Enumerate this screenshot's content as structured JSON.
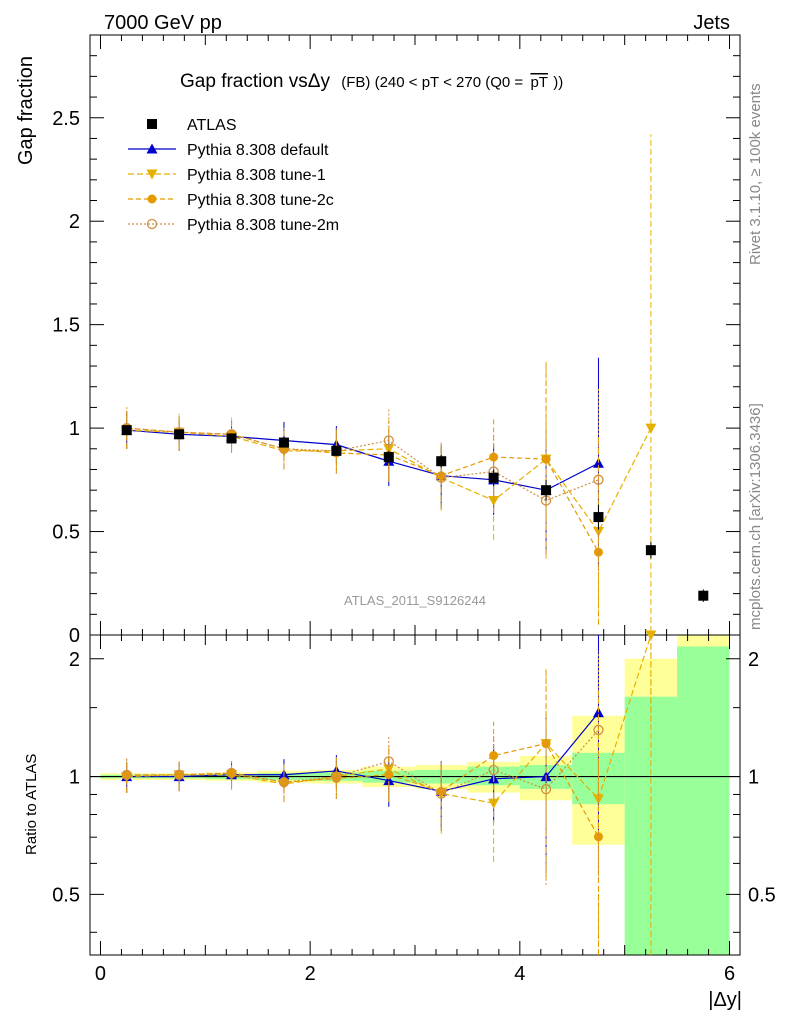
{
  "header": {
    "left": "7000 GeV pp",
    "right": "Jets"
  },
  "side_labels": {
    "rivet": "Rivet 3.1.10, ≥ 100k events",
    "mcplots": "mcplots.cern.ch [arXiv:1306.3436]"
  },
  "chart_data": {
    "type": "scatter",
    "title": "Gap fraction vsΔy (FB) (240 < pT < 270 (Q0 = pT))",
    "title_parts": {
      "main": "Gap fraction vsΔy",
      "sub": "(FB) (240 < pT < 270 (Q0 =",
      "bar": "pT",
      "close": "))"
    },
    "analysis": "ATLAS_2011_S9126244",
    "xlabel": "|Δy|",
    "ylabel": "Gap fraction",
    "ratio_ylabel": "Ratio to ATLAS",
    "xlim": [
      -0.1,
      6.1
    ],
    "ylim": [
      0,
      2.9
    ],
    "ratio_ylim": [
      0.35,
      2.3
    ],
    "x_ticks": [
      "0",
      "2",
      "4",
      "6"
    ],
    "y_ticks": [
      "0",
      "0.5",
      "1",
      "1.5",
      "2",
      "2.5"
    ],
    "ratio_ticks": [
      "0.5",
      "1",
      "2"
    ],
    "legend_position": "top-left",
    "x": [
      0.25,
      0.75,
      1.25,
      1.75,
      2.25,
      2.75,
      3.25,
      3.75,
      4.25,
      4.75,
      5.25,
      5.75
    ],
    "series": [
      {
        "name": "ATLAS",
        "color": "#000000",
        "marker": "square",
        "values": [
          0.99,
          0.97,
          0.95,
          0.93,
          0.89,
          0.86,
          0.84,
          0.76,
          0.7,
          0.57,
          0.41,
          0.19
        ],
        "errors": [
          0.01,
          0.01,
          0.01,
          0.02,
          0.02,
          0.03,
          0.03,
          0.04,
          0.05,
          0.06,
          0.04,
          0.03
        ]
      },
      {
        "name": "Pythia 8.308 default",
        "color": "#0000cc",
        "marker": "triangle-up",
        "dash": "",
        "values": [
          0.99,
          0.97,
          0.96,
          0.94,
          0.92,
          0.84,
          0.77,
          0.75,
          0.7,
          0.83,
          null,
          null
        ],
        "errors": [
          0.09,
          0.08,
          0.08,
          0.09,
          0.09,
          0.12,
          0.15,
          0.17,
          0.3,
          0.51,
          null,
          null
        ]
      },
      {
        "name": "Pythia 8.308 tune-1",
        "color": "#e5b000",
        "marker": "triangle-down",
        "dash": "6,3",
        "values": [
          0.99,
          0.98,
          0.96,
          0.89,
          0.89,
          0.9,
          0.76,
          0.65,
          0.85,
          0.5,
          1.0,
          null
        ],
        "errors": [
          0.09,
          0.08,
          0.08,
          0.09,
          0.1,
          0.14,
          0.16,
          0.19,
          0.47,
          0.45,
          1.42,
          null
        ]
      },
      {
        "name": "Pythia 8.308 tune-2c",
        "color": "#e59a00",
        "marker": "circle",
        "dash": "5,3",
        "values": [
          1.0,
          0.98,
          0.97,
          0.9,
          0.88,
          0.87,
          0.77,
          0.86,
          0.85,
          0.4,
          null,
          null
        ],
        "errors": [
          0.1,
          0.08,
          0.07,
          0.09,
          0.1,
          0.13,
          0.16,
          0.19,
          0.46,
          0.35,
          null,
          null
        ]
      },
      {
        "name": "Pythia 8.308 tune-2m",
        "color": "#d09040",
        "marker": "open-circle",
        "dash": "2,2",
        "values": [
          1.0,
          0.98,
          0.97,
          0.9,
          0.89,
          0.94,
          0.76,
          0.79,
          0.65,
          0.75,
          null,
          null
        ],
        "errors": [
          0.1,
          0.09,
          0.08,
          0.1,
          0.11,
          0.15,
          0.15,
          0.18,
          0.28,
          0.44,
          null,
          null
        ]
      }
    ],
    "ratio_bands": {
      "green": [
        [
          0.99,
          1.01
        ],
        [
          0.99,
          1.01
        ],
        [
          0.985,
          1.015
        ],
        [
          0.98,
          1.02
        ],
        [
          0.975,
          1.025
        ],
        [
          0.965,
          1.035
        ],
        [
          0.96,
          1.04
        ],
        [
          0.95,
          1.06
        ],
        [
          0.93,
          1.07
        ],
        [
          0.85,
          1.15
        ],
        [
          0.35,
          1.6
        ],
        [
          0.35,
          2.15
        ]
      ],
      "yellow": [
        [
          0.98,
          1.02
        ],
        [
          0.98,
          1.02
        ],
        [
          0.975,
          1.025
        ],
        [
          0.965,
          1.035
        ],
        [
          0.96,
          1.04
        ],
        [
          0.94,
          1.06
        ],
        [
          0.93,
          1.07
        ],
        [
          0.91,
          1.09
        ],
        [
          0.87,
          1.13
        ],
        [
          0.67,
          1.43
        ],
        [
          0.56,
          2.0
        ],
        [
          0.35,
          2.3
        ]
      ]
    }
  }
}
